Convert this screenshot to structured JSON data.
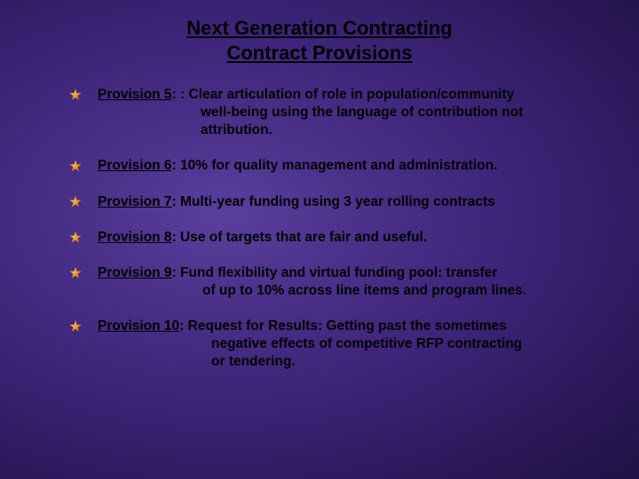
{
  "title": {
    "line1": "Next Generation Contracting",
    "line2": "Contract Provisions"
  },
  "provisions": [
    {
      "label": "Provision 5",
      "sep": ": : ",
      "text1": "Clear articulation of role in population/community",
      "cont": [
        "well-being using the language of contribution not",
        "attribution."
      ],
      "contClass": "continuation5"
    },
    {
      "label": "Provision 6",
      "sep": ": ",
      "text1": "10% for quality management and administration.",
      "cont": [],
      "contClass": ""
    },
    {
      "label": "Provision 7",
      "sep": ": ",
      "text1": "Multi-year funding using 3 year rolling contracts",
      "cont": [],
      "contClass": ""
    },
    {
      "label": "Provision 8",
      "sep": ": ",
      "text1": "Use of targets that are fair and useful.",
      "cont": [],
      "contClass": ""
    },
    {
      "label": "Provision 9",
      "sep": ": ",
      "text1": "Fund flexibility and virtual funding pool: transfer",
      "cont": [
        "of up to 10% across line items and program lines."
      ],
      "contClass": "continuation9"
    },
    {
      "label": "Provision 10",
      "sep": ": ",
      "text1": "Request for Results: Getting past the sometimes",
      "cont": [
        "negative effects of competitive RFP contracting",
        "or tendering."
      ],
      "contClass": "continuation10"
    }
  ],
  "styling": {
    "background_gradient_center": "#5a3f9e",
    "background_gradient_edge": "#1f1245",
    "text_color": "#000000",
    "bullet_color_light": "#ffb84d",
    "bullet_color_dark": "#b8580a",
    "title_fontsize": 22,
    "body_fontsize": 15.5,
    "font_weight": "bold",
    "font_family": "Arial",
    "slide_width": 720,
    "slide_height": 540
  }
}
